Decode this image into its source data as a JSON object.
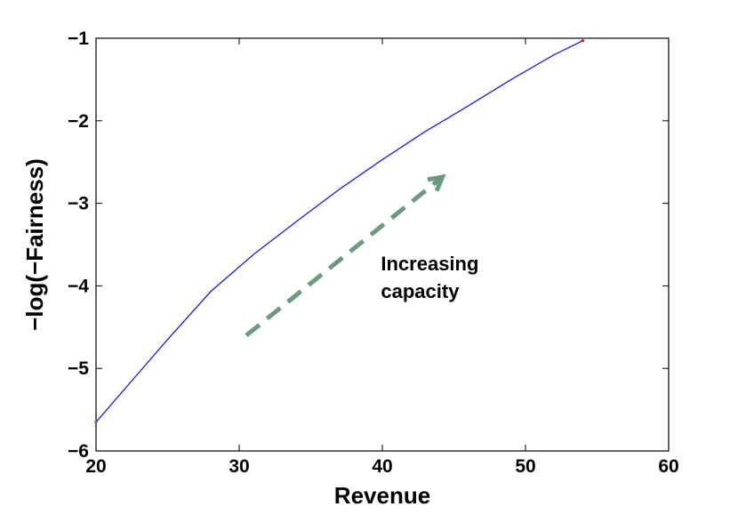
{
  "chart_data": {
    "type": "line",
    "title": "",
    "xlabel": "Revenue",
    "ylabel": "−log(−Fairness)",
    "xlim": [
      20,
      60
    ],
    "ylim": [
      -6,
      -1
    ],
    "x_ticks": [
      20,
      30,
      40,
      50,
      60
    ],
    "x_tick_labels": [
      "20",
      "30",
      "40",
      "50",
      "60"
    ],
    "y_ticks": [
      -6,
      -5,
      -4,
      -3,
      -2,
      -1
    ],
    "y_tick_labels": [
      "−6",
      "−5",
      "−4",
      "−3",
      "−2",
      "−1"
    ],
    "grid": false,
    "legend": "none",
    "series": [
      {
        "color": "#1a1aff",
        "x": [
          20.0,
          22.5,
          25.0,
          28.0,
          31.0,
          34.0,
          37.0,
          40.0,
          43.0,
          46.0,
          49.0,
          52.0,
          54.0
        ],
        "y": [
          -5.65,
          -5.15,
          -4.65,
          -4.07,
          -3.62,
          -3.22,
          -2.83,
          -2.47,
          -2.13,
          -1.82,
          -1.5,
          -1.2,
          -1.03
        ]
      }
    ],
    "start_marker_color": "#2e8b2e",
    "end_marker_color": "#ff0000",
    "annotation": {
      "lines": [
        "Increasing",
        "capacity"
      ],
      "arrow_color": "#6b9b7e",
      "arrow_from": [
        30.5,
        -4.6
      ],
      "arrow_to": [
        44.2,
        -2.68
      ],
      "text_at": [
        39.9,
        -3.81
      ]
    }
  }
}
